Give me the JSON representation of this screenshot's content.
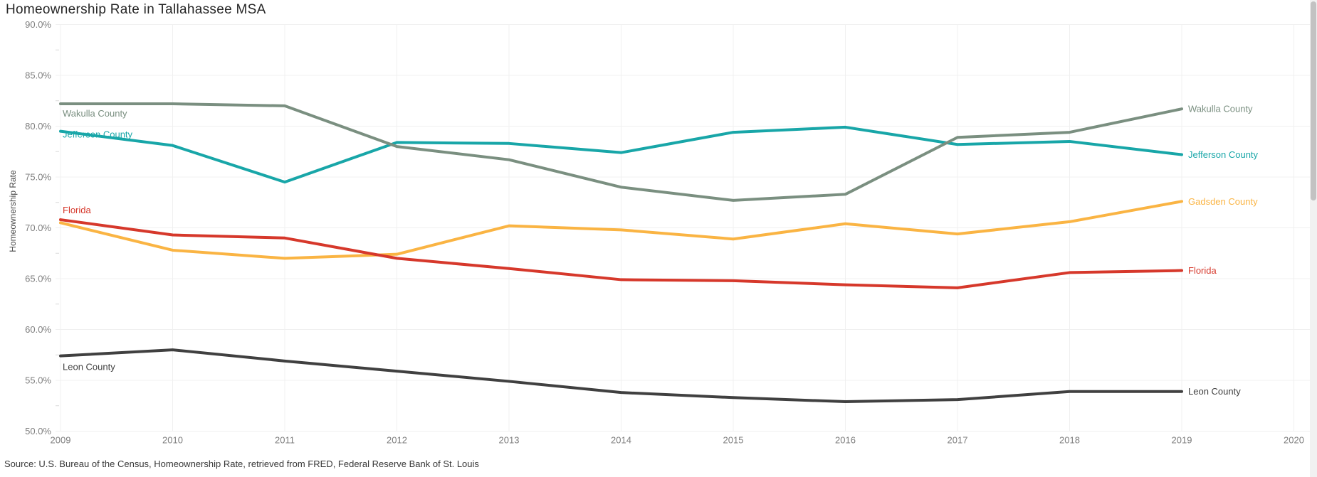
{
  "page": {
    "title": "Homeownership Rate in Tallahassee MSA",
    "source_note": "Source: U.S. Bureau of the Census, Homeownership Rate, retrieved from FRED, Federal Reserve Bank of St. Louis"
  },
  "chart_data": {
    "type": "line",
    "title": "Homeownership Rate in Tallahassee MSA",
    "xlabel": "",
    "ylabel": "Homeownership Rate",
    "xlim": [
      2009,
      2020
    ],
    "ylim": [
      50,
      90
    ],
    "grid": true,
    "legend_position": "inline-line-labels-left-and-right",
    "x": [
      2009,
      2010,
      2011,
      2012,
      2013,
      2014,
      2015,
      2016,
      2017,
      2018,
      2019
    ],
    "x_ticks": [
      "2009",
      "2010",
      "2011",
      "2012",
      "2013",
      "2014",
      "2015",
      "2016",
      "2017",
      "2018",
      "2019",
      "2020"
    ],
    "y_ticks": [
      {
        "value": 90,
        "label": "90.0%"
      },
      {
        "value": 85,
        "label": "85.0%"
      },
      {
        "value": 80,
        "label": "80.0%"
      },
      {
        "value": 75,
        "label": "75.0%"
      },
      {
        "value": 70,
        "label": "70.0%"
      },
      {
        "value": 65,
        "label": "65.0%"
      },
      {
        "value": 60,
        "label": "60.0%"
      },
      {
        "value": 55,
        "label": "55.0%"
      },
      {
        "value": 50,
        "label": "50.0%"
      }
    ],
    "series": [
      {
        "name": "Leon County",
        "color": "#404040",
        "values": [
          57.4,
          58.0,
          56.9,
          55.9,
          54.9,
          53.8,
          53.3,
          52.9,
          53.1,
          53.9,
          53.9
        ]
      },
      {
        "name": "Jefferson County",
        "color": "#18A6A8",
        "values": [
          79.5,
          78.1,
          74.5,
          78.4,
          78.3,
          77.4,
          79.4,
          79.9,
          78.2,
          78.5,
          77.2
        ]
      },
      {
        "name": "Gadsden County",
        "color": "#FAB443",
        "values": [
          70.5,
          67.8,
          67.0,
          67.4,
          70.2,
          69.8,
          68.9,
          70.4,
          69.4,
          70.6,
          72.6
        ]
      },
      {
        "name": "Florida",
        "color": "#D6382B",
        "values": [
          70.8,
          69.3,
          69.0,
          67.0,
          66.0,
          64.9,
          64.8,
          64.4,
          64.1,
          65.6,
          65.8
        ]
      },
      {
        "name": "Wakulla County",
        "color": "#7A8F80",
        "values": [
          82.2,
          82.2,
          82.0,
          78.0,
          76.7,
          74.0,
          72.7,
          73.3,
          78.9,
          79.4,
          81.7
        ]
      }
    ]
  },
  "colors": {
    "background": "#ffffff",
    "gridline": "#f0f0f0",
    "minor_tick": "#d9d9d9",
    "tick_label": "#7e7e7e",
    "title_text": "#262626",
    "scrollbar_track": "#f1f1f1",
    "scrollbar_thumb": "#c2c2c2"
  },
  "scrollbar": {
    "visible": true
  }
}
